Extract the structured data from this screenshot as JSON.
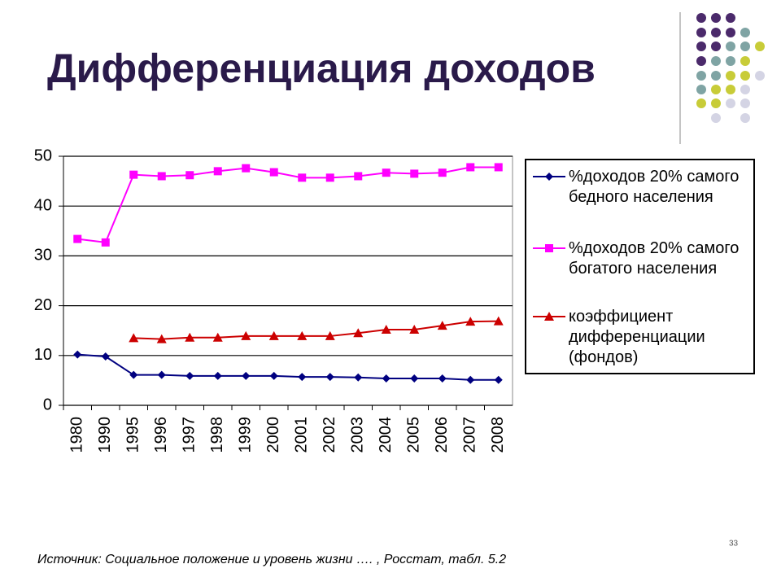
{
  "chart_data": {
    "type": "line",
    "title": "Дифференциация доходов",
    "categories": [
      "1980",
      "1990",
      "1995",
      "1996",
      "1997",
      "1998",
      "1999",
      "2000",
      "2001",
      "2002",
      "2003",
      "2004",
      "2005",
      "2006",
      "2007",
      "2008"
    ],
    "series": [
      {
        "name": "%доходов 20% самого бедного населения",
        "color": "#000080",
        "marker": "diamond",
        "values": [
          10.2,
          9.8,
          6.1,
          6.1,
          5.9,
          5.9,
          5.9,
          5.9,
          5.7,
          5.7,
          5.6,
          5.4,
          5.4,
          5.4,
          5.1,
          5.1
        ]
      },
      {
        "name": "%доходов 20% самого богатого населения",
        "color": "#ff00ff",
        "marker": "square",
        "values": [
          33.4,
          32.7,
          46.3,
          46.0,
          46.2,
          47.0,
          47.6,
          46.8,
          45.7,
          45.7,
          46.0,
          46.7,
          46.5,
          46.7,
          47.8,
          47.8
        ]
      },
      {
        "name": "коэффициент дифференциации (фондов)",
        "color": "#cc0000",
        "marker": "triangle",
        "values": [
          null,
          null,
          13.5,
          13.3,
          13.6,
          13.6,
          13.9,
          13.9,
          13.9,
          13.9,
          14.5,
          15.2,
          15.2,
          16.0,
          16.8,
          16.9
        ]
      }
    ],
    "ylim": [
      0,
      50
    ],
    "yticks": [
      0,
      10,
      20,
      30,
      40,
      50
    ],
    "grid": true,
    "legend": "right",
    "source": "Источник: Социальное положение и уровень жизни …. , Росстат, табл. 5.2",
    "page_number": "33"
  }
}
